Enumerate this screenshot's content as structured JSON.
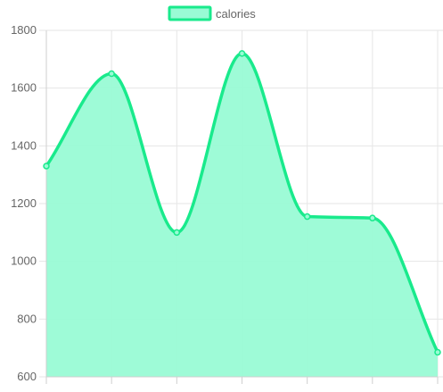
{
  "chart_data": {
    "type": "area",
    "x": [
      "",
      "",
      "",
      "",
      "",
      "",
      ""
    ],
    "series": [
      {
        "name": "calories",
        "values": [
          1330,
          1650,
          1100,
          1720,
          1155,
          1150,
          685
        ]
      }
    ],
    "title": "",
    "xlabel": "",
    "ylabel": "",
    "ylim": [
      600,
      1800
    ],
    "yticks": [
      600,
      800,
      1000,
      1200,
      1400,
      1600,
      1800
    ],
    "grid": true,
    "legend_position": "top-center",
    "colors": {
      "line": "#19ea8c",
      "fill": "#99fbd5",
      "grid": "#e6e6e6",
      "axis": "#cfcfcf",
      "text": "#666666"
    }
  }
}
